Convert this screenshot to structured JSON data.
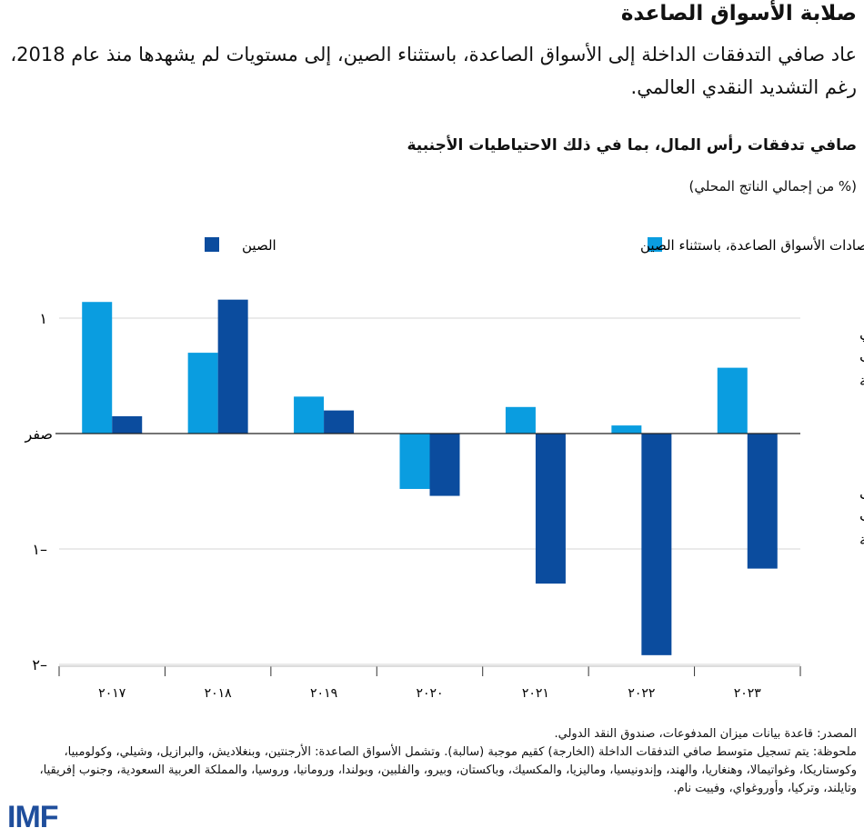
{
  "header": {
    "title": "صلابة الأسواق الصاعدة",
    "subtitle": "عاد صافي التدفقات الداخلة إلى الأسواق الصاعدة، باستثناء الصين، إلى مستويات لم يشهدها منذ عام 2018، رغم التشديد النقدي العالمي."
  },
  "chart_data": {
    "type": "bar",
    "title": "صافي تدفقات رأس المال، بما في ذلك الاحتياطيات الأجنبية",
    "ylabel": "(% من إجمالي الناتج المحلي)",
    "categories": [
      "٢٠١٧",
      "٢٠١٨",
      "٢٠١٩",
      "٢٠٢٠",
      "٢٠٢١",
      "٢٠٢٢",
      "٢٠٢٣"
    ],
    "series": [
      {
        "name": "اقتصادات الأسواق الصاعدة، باستثناء الصين",
        "color": "#0a9de0",
        "values": [
          1.14,
          0.7,
          0.32,
          -0.48,
          0.23,
          0.07,
          0.57
        ]
      },
      {
        "name": "الصين",
        "color": "#0b4c9e",
        "values": [
          0.15,
          1.16,
          0.2,
          -0.54,
          -1.3,
          -1.92,
          -1.17
        ]
      }
    ],
    "ylim": [
      -2,
      1.3
    ],
    "yticks": [
      {
        "value": 1,
        "label": "١"
      },
      {
        "value": 0,
        "label": "صفر"
      },
      {
        "value": -1,
        "label": "١–"
      },
      {
        "value": -2,
        "label": "٢–"
      }
    ],
    "annotations": {
      "inflows": "صافي التدفقات الداخلة",
      "outflows": "صافى التدفقات الخارجة"
    },
    "grid": true,
    "legend": "top"
  },
  "footer": {
    "source": "المصدر: قاعدة بيانات ميزان المدفوعات، صندوق النقد الدولي.",
    "note": "ملحوظة: يتم تسجيل متوسط صافي التدفقات الداخلة (الخارجة) كقيم موجبة (سالبة). وتشمل الأسواق الصاعدة: الأرجنتين، وبنغلاديش، والبرازيل، وشيلي، وكولومبيا، وكوستاريكا، وغواتيمالا، وهنغاريا، والهند، وإندونيسيا، وماليزيا، والمكسيك، وباكستان، وبيرو، والفلبين، وبولندا، ورومانيا، وروسيا، والمملكة العربية السعودية، وجنوب إفريقيا، وتايلند، وتركيا، وأوروغواي، وفييت نام.",
    "logo": "IMF"
  }
}
